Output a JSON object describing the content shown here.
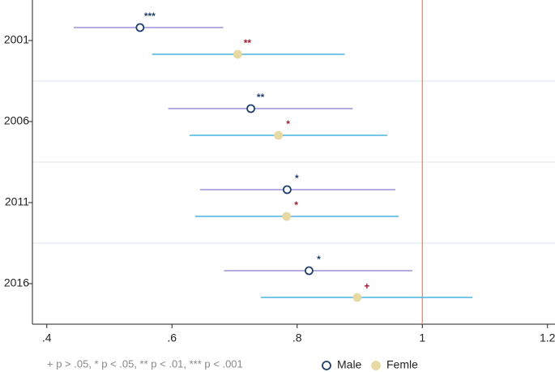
{
  "chart_data": {
    "type": "forest",
    "categories": [
      "2001",
      "2006",
      "2011",
      "2016"
    ],
    "series": [
      {
        "name": "Male",
        "color": "#1f3f6e",
        "ci_color": "#9b8fd6",
        "label_color": "#1f3f6e",
        "marker": "hollow",
        "values": [
          0.549,
          0.726,
          0.784,
          0.819
        ],
        "lower": [
          0.443,
          0.594,
          0.645,
          0.683
        ],
        "upper": [
          0.682,
          0.889,
          0.957,
          0.984
        ],
        "significance": [
          "***",
          "**",
          "*",
          "*"
        ]
      },
      {
        "name": "Femle",
        "color": "#e6d9a3",
        "ci_color": "#4fb3e0",
        "label_color": "#9b1b30",
        "marker": "filled",
        "values": [
          0.705,
          0.77,
          0.783,
          0.896
        ],
        "lower": [
          0.568,
          0.628,
          0.637,
          0.742
        ],
        "upper": [
          0.876,
          0.944,
          0.962,
          1.08
        ],
        "significance": [
          "**",
          "*",
          "*",
          "+"
        ]
      }
    ],
    "xlim": [
      0.377,
      1.212
    ],
    "xticks": [
      {
        "value": 0.4,
        "label": ".4"
      },
      {
        "value": 0.6,
        "label": ".6"
      },
      {
        "value": 0.8,
        "label": ".8"
      },
      1,
      1.2
    ],
    "reference_line": 1,
    "reference_color": "#f07850",
    "note": "+ p > .05, * p < .05, ** p < .01, *** p < .001"
  }
}
